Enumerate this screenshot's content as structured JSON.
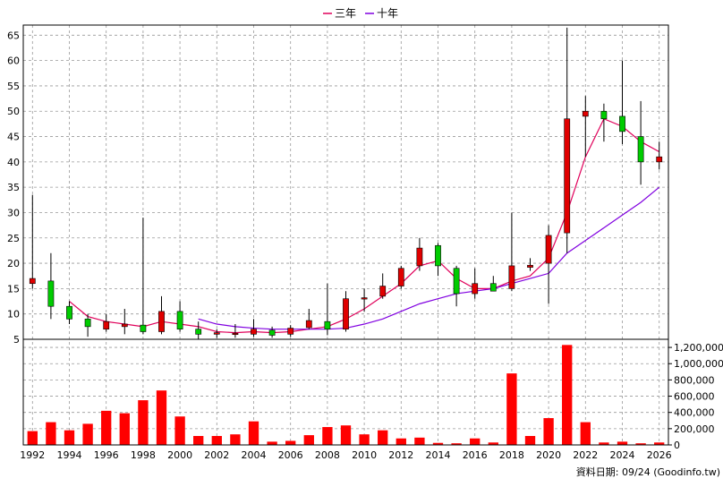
{
  "legend": {
    "items": [
      {
        "label": "三年",
        "color": "#e0005a"
      },
      {
        "label": "十年",
        "color": "#8000e0"
      }
    ]
  },
  "footer": {
    "source": "資料日期: 09/24 (Goodinfo.tw)"
  },
  "colors": {
    "up": "#e00000",
    "down": "#00cc00",
    "volume": "#ff0000",
    "grid": "#999999"
  },
  "chart_data": [
    {
      "type": "candlestick",
      "title": "",
      "xlim": [
        1992,
        2026
      ],
      "ylim": [
        5,
        67
      ],
      "y_ticks": [
        5,
        10,
        15,
        20,
        25,
        30,
        35,
        40,
        45,
        50,
        55,
        60,
        65
      ],
      "x_ticks": [
        1992,
        1994,
        1996,
        1998,
        2000,
        2002,
        2004,
        2006,
        2008,
        2010,
        2012,
        2014,
        2016,
        2018,
        2020,
        2022,
        2024,
        2026
      ],
      "grid": true,
      "legend_position": "top-center",
      "candles": [
        {
          "year": 1992,
          "open": 16.0,
          "close": 17.0,
          "high": 33.5,
          "low": 15.0
        },
        {
          "year": 1993,
          "open": 16.5,
          "close": 11.5,
          "high": 22.0,
          "low": 9.0
        },
        {
          "year": 1994,
          "open": 11.5,
          "close": 9.0,
          "high": 12.5,
          "low": 8.0
        },
        {
          "year": 1995,
          "open": 9.0,
          "close": 7.5,
          "high": 10.0,
          "low": 5.5
        },
        {
          "year": 1996,
          "open": 7.0,
          "close": 8.5,
          "high": 10.0,
          "low": 6.5
        },
        {
          "year": 1997,
          "open": 7.5,
          "close": 8.0,
          "high": 11.0,
          "low": 6.0
        },
        {
          "year": 1998,
          "open": 7.8,
          "close": 6.5,
          "high": 29.0,
          "low": 6.0
        },
        {
          "year": 1999,
          "open": 6.5,
          "close": 10.5,
          "high": 13.5,
          "low": 6.0
        },
        {
          "year": 2000,
          "open": 10.5,
          "close": 7.0,
          "high": 12.5,
          "low": 6.5
        },
        {
          "year": 2001,
          "open": 7.0,
          "close": 6.0,
          "high": 8.5,
          "low": 5.0
        },
        {
          "year": 2002,
          "open": 6.0,
          "close": 6.3,
          "high": 7.0,
          "low": 5.3
        },
        {
          "year": 2003,
          "open": 6.0,
          "close": 6.2,
          "high": 8.0,
          "low": 5.3
        },
        {
          "year": 2004,
          "open": 6.0,
          "close": 7.0,
          "high": 9.0,
          "low": 5.5
        },
        {
          "year": 2005,
          "open": 6.8,
          "close": 5.8,
          "high": 7.5,
          "low": 5.3
        },
        {
          "year": 2006,
          "open": 6.0,
          "close": 7.2,
          "high": 7.8,
          "low": 5.5
        },
        {
          "year": 2007,
          "open": 7.3,
          "close": 8.7,
          "high": 11.0,
          "low": 7.0
        },
        {
          "year": 2008,
          "open": 8.5,
          "close": 7.0,
          "high": 16.0,
          "low": 5.8
        },
        {
          "year": 2009,
          "open": 7.0,
          "close": 13.0,
          "high": 14.5,
          "low": 6.5
        },
        {
          "year": 2010,
          "open": 13.0,
          "close": 13.2,
          "high": 15.0,
          "low": 10.5
        },
        {
          "year": 2011,
          "open": 13.5,
          "close": 15.5,
          "high": 18.0,
          "low": 13.0
        },
        {
          "year": 2012,
          "open": 15.5,
          "close": 19.0,
          "high": 19.5,
          "low": 15.0
        },
        {
          "year": 2013,
          "open": 19.5,
          "close": 23.0,
          "high": 25.0,
          "low": 18.5
        },
        {
          "year": 2014,
          "open": 23.5,
          "close": 19.5,
          "high": 24.0,
          "low": 17.5
        },
        {
          "year": 2015,
          "open": 19.0,
          "close": 14.0,
          "high": 19.5,
          "low": 11.5
        },
        {
          "year": 2016,
          "open": 14.0,
          "close": 16.0,
          "high": 19.0,
          "low": 13.0
        },
        {
          "year": 2017,
          "open": 16.0,
          "close": 14.5,
          "high": 17.5,
          "low": 14.5
        },
        {
          "year": 2018,
          "open": 15.0,
          "close": 19.5,
          "high": 30.0,
          "low": 14.5
        },
        {
          "year": 2019,
          "open": 19.2,
          "close": 19.6,
          "high": 21.0,
          "low": 18.5
        },
        {
          "year": 2020,
          "open": 20.0,
          "close": 25.5,
          "high": 27.5,
          "low": 12.0
        },
        {
          "year": 2021,
          "open": 26.0,
          "close": 48.5,
          "high": 66.5,
          "low": 22.0
        },
        {
          "year": 2022,
          "open": 49.0,
          "close": 50.0,
          "high": 53.0,
          "low": 41.0
        },
        {
          "year": 2023,
          "open": 50.0,
          "close": 48.5,
          "high": 51.5,
          "low": 44.0
        },
        {
          "year": 2024,
          "open": 49.0,
          "close": 46.0,
          "high": 60.0,
          "low": 43.5
        },
        {
          "year": 2025,
          "open": 45.0,
          "close": 40.0,
          "high": 52.0,
          "low": 35.5
        },
        {
          "year": 2026,
          "open": 40.0,
          "close": 41.0,
          "high": 44.0,
          "low": 38.5
        }
      ],
      "series": [
        {
          "name": "三年",
          "x": [
            1994,
            1995,
            1996,
            1997,
            1998,
            1999,
            2000,
            2001,
            2002,
            2003,
            2004,
            2005,
            2006,
            2007,
            2008,
            2009,
            2010,
            2011,
            2012,
            2013,
            2014,
            2015,
            2016,
            2017,
            2018,
            2019,
            2020,
            2021,
            2022,
            2023,
            2024,
            2025,
            2026
          ],
          "values": [
            12.5,
            9.5,
            8.5,
            8.0,
            7.5,
            8.5,
            8.0,
            7.5,
            6.5,
            6.3,
            6.5,
            6.3,
            6.5,
            7.0,
            7.5,
            9.0,
            11.0,
            13.5,
            16.0,
            19.5,
            20.5,
            17.0,
            15.0,
            15.0,
            16.5,
            17.5,
            21.0,
            30.0,
            41.0,
            48.5,
            47.0,
            44.0,
            42.0
          ]
        },
        {
          "name": "十年",
          "x": [
            2001,
            2002,
            2003,
            2004,
            2005,
            2006,
            2007,
            2008,
            2009,
            2010,
            2011,
            2012,
            2013,
            2014,
            2015,
            2016,
            2017,
            2018,
            2019,
            2020,
            2021,
            2022,
            2023,
            2024,
            2025,
            2026
          ],
          "values": [
            9.0,
            8.0,
            7.5,
            7.2,
            7.0,
            7.0,
            7.0,
            7.0,
            7.2,
            8.0,
            9.0,
            10.5,
            12.0,
            13.0,
            14.0,
            14.5,
            15.0,
            16.0,
            17.0,
            18.0,
            22.0,
            24.5,
            27.0,
            29.5,
            32.0,
            35.0
          ]
        }
      ]
    },
    {
      "type": "bar",
      "title": "",
      "ylim": [
        0,
        1300000
      ],
      "y_ticks": [
        0,
        200000,
        400000,
        600000,
        800000,
        1000000,
        1200000
      ],
      "y_tick_labels": [
        "0",
        "200,000",
        "400,000",
        "600,000",
        "800,000",
        "1,000,000",
        "1,200,000"
      ],
      "grid": true,
      "categories": [
        1992,
        1993,
        1994,
        1995,
        1996,
        1997,
        1998,
        1999,
        2000,
        2001,
        2002,
        2003,
        2004,
        2005,
        2006,
        2007,
        2008,
        2009,
        2010,
        2011,
        2012,
        2013,
        2014,
        2015,
        2016,
        2017,
        2018,
        2019,
        2020,
        2021,
        2022,
        2023,
        2024,
        2025,
        2026
      ],
      "values": [
        170000,
        280000,
        180000,
        260000,
        420000,
        390000,
        550000,
        670000,
        350000,
        110000,
        110000,
        130000,
        290000,
        40000,
        50000,
        120000,
        220000,
        240000,
        130000,
        180000,
        80000,
        90000,
        25000,
        20000,
        80000,
        30000,
        880000,
        110000,
        330000,
        1230000,
        280000,
        30000,
        40000,
        20000,
        30000
      ]
    }
  ]
}
